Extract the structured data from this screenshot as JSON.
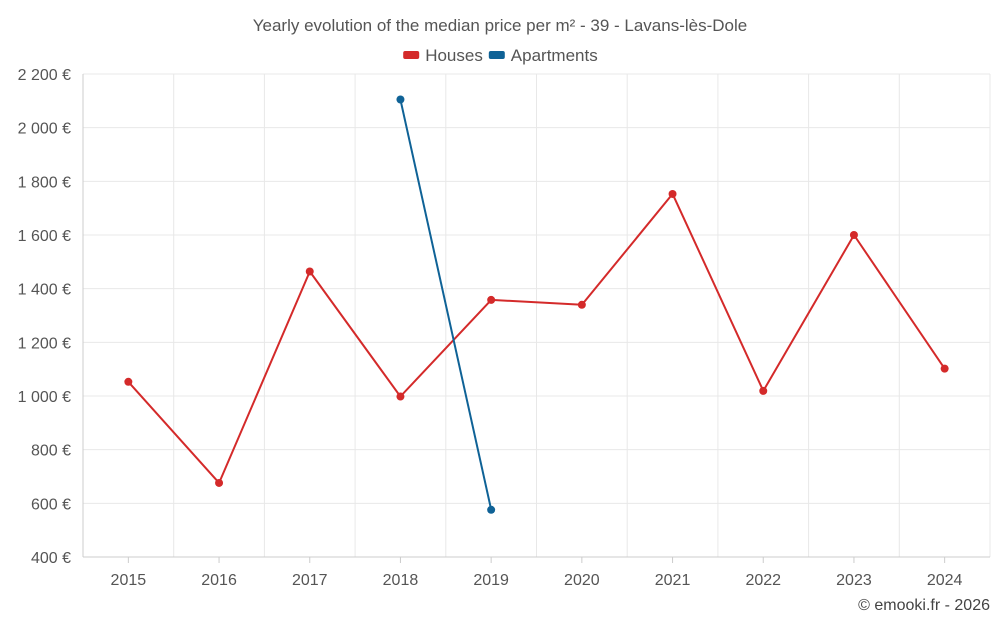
{
  "colors": {
    "houses": "#d42a2a",
    "apartments": "#0f6296",
    "grid": "#e8e8e8",
    "text": "#555555",
    "title": "#555555"
  },
  "credit": "© emooki.fr - 2026",
  "chart_data": {
    "type": "line",
    "title": "Yearly evolution of the median price per m² - 39 - Lavans-lès-Dole",
    "categories": [
      "2015",
      "2016",
      "2017",
      "2018",
      "2019",
      "2020",
      "2021",
      "2022",
      "2023",
      "2024"
    ],
    "ylim": [
      400,
      2200
    ],
    "yticks": [
      400,
      600,
      800,
      1000,
      1200,
      1400,
      1600,
      1800,
      2000,
      2200
    ],
    "ytick_labels": [
      "400 €",
      "600 €",
      "800 €",
      "1 000 €",
      "1 200 €",
      "1 400 €",
      "1 600 €",
      "1 800 €",
      "2 000 €",
      "2 200 €"
    ],
    "legend_position": "top-center",
    "grid": true,
    "series": [
      {
        "name": "Houses",
        "color": "#d42a2a",
        "values": [
          1053,
          676,
          1464,
          998,
          1358,
          1340,
          1753,
          1019,
          1600,
          1102
        ]
      },
      {
        "name": "Apartments",
        "color": "#0f6296",
        "values": [
          null,
          null,
          null,
          2105,
          576,
          null,
          null,
          null,
          null,
          null
        ]
      }
    ]
  }
}
